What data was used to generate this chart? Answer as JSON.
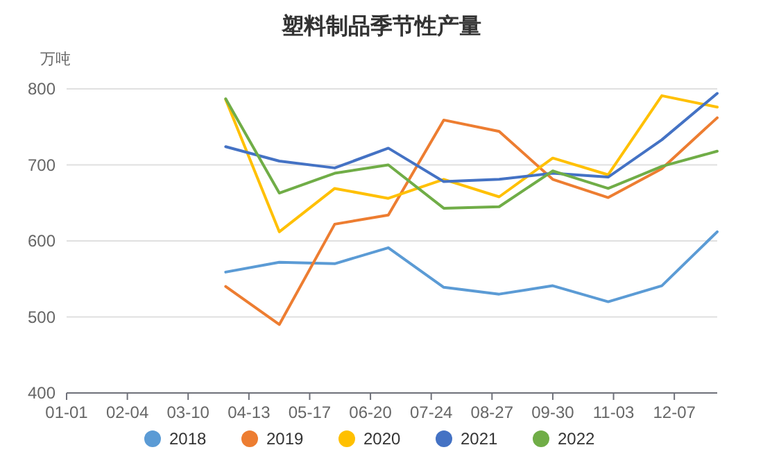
{
  "chart_data": {
    "type": "line",
    "title": "塑料制品季节性产量",
    "ylabel": "万吨",
    "x": [
      "--03-31",
      "--04-30",
      "--05-31",
      "--06-30",
      "--07-31",
      "--08-31",
      "--09-30",
      "--10-31",
      "--11-30",
      "--12-31"
    ],
    "xlim": [
      "--01-01",
      "--12-31"
    ],
    "xticks": [
      {
        "value": "--01-01",
        "label": "01-01"
      },
      {
        "value": "--02-04",
        "label": "02-04"
      },
      {
        "value": "--03-10",
        "label": "03-10"
      },
      {
        "value": "--04-13",
        "label": "04-13"
      },
      {
        "value": "--05-17",
        "label": "05-17"
      },
      {
        "value": "--06-20",
        "label": "06-20"
      },
      {
        "value": "--07-24",
        "label": "07-24"
      },
      {
        "value": "--08-27",
        "label": "08-27"
      },
      {
        "value": "--09-30",
        "label": "09-30"
      },
      {
        "value": "--11-03",
        "label": "11-03"
      },
      {
        "value": "--12-07",
        "label": "12-07"
      }
    ],
    "ylim": [
      400,
      800
    ],
    "yticks": [
      400,
      500,
      600,
      700,
      800
    ],
    "grid": "y",
    "legend": "bottom",
    "series": [
      {
        "name": "2018",
        "color": "#5b9bd5",
        "values": [
          559,
          572,
          570,
          591,
          539,
          530,
          541,
          520,
          541,
          612
        ]
      },
      {
        "name": "2019",
        "color": "#ed7d31",
        "values": [
          540,
          490,
          622,
          634,
          759,
          744,
          681,
          657,
          695,
          762
        ]
      },
      {
        "name": "2020",
        "color": "#ffc000",
        "values": [
          786,
          612,
          669,
          656,
          681,
          658,
          709,
          687,
          791,
          776
        ]
      },
      {
        "name": "2021",
        "color": "#4472c4",
        "values": [
          724,
          705,
          696,
          722,
          678,
          681,
          689,
          684,
          733,
          794
        ]
      },
      {
        "name": "2022",
        "color": "#70ad47",
        "values": [
          787,
          663,
          689,
          700,
          643,
          645,
          692,
          669,
          698,
          718
        ]
      }
    ]
  }
}
